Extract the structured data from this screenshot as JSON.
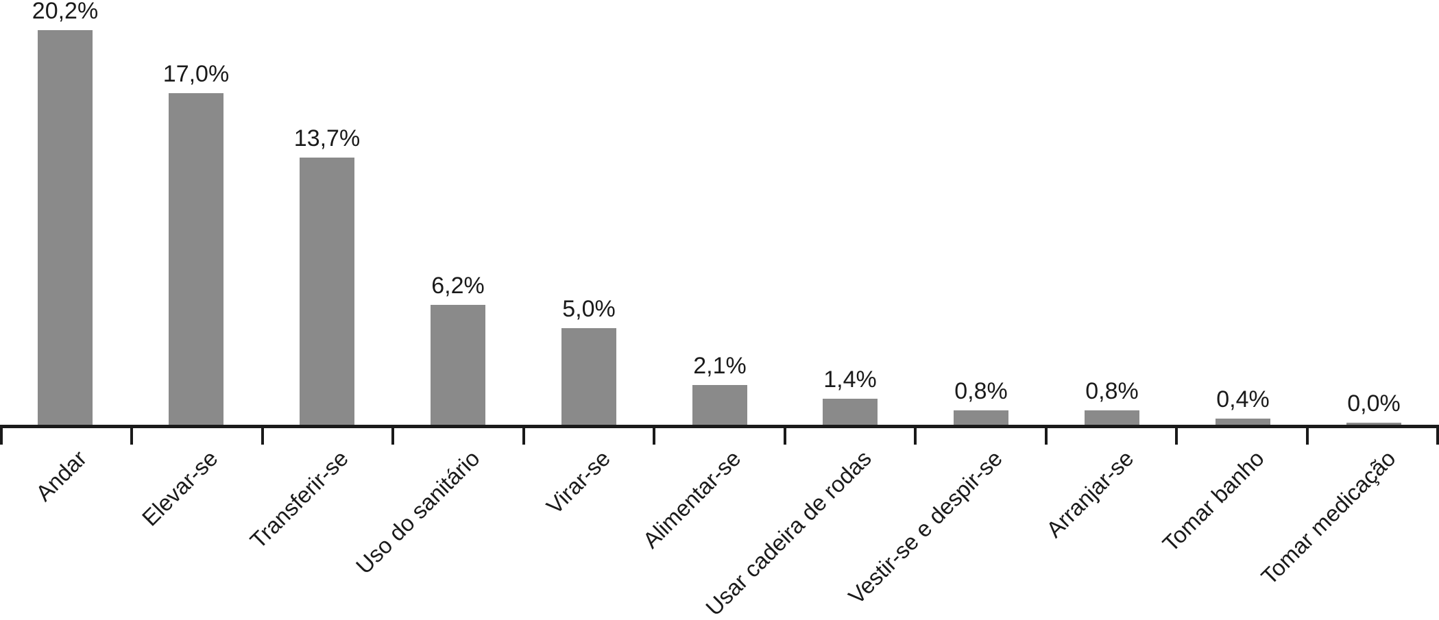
{
  "chart_data": {
    "type": "bar",
    "title": "",
    "xlabel": "",
    "ylabel": "",
    "unit": "%",
    "decimal_separator": ",",
    "ylim": [
      0,
      22
    ],
    "grid": false,
    "legend_position": "none",
    "category_label_rotation_deg": 45,
    "tick_style": "ticks below axis at category boundaries",
    "categories": [
      "Andar",
      "Elevar-se",
      "Transferir-se",
      "Uso do sanitário",
      "Virar-se",
      "Alimentar-se",
      "Usar cadeira de rodas",
      "Vestir-se e despir-se",
      "Arranjar-se",
      "Tomar banho",
      "Tomar medicação"
    ],
    "values": [
      20.2,
      17.0,
      13.7,
      6.2,
      5.0,
      2.1,
      1.4,
      0.8,
      0.8,
      0.4,
      0.0
    ],
    "value_labels": [
      "20,2%",
      "17,0%",
      "13,7%",
      "6,2%",
      "5,0%",
      "2,1%",
      "1,4%",
      "0,8%",
      "0,8%",
      "0,4%",
      "0,0%"
    ],
    "colors": {
      "bar_fill": "#8a8a8a",
      "axis": "#1a1a1a",
      "text": "#1a1a1a",
      "background": "#ffffff"
    }
  }
}
